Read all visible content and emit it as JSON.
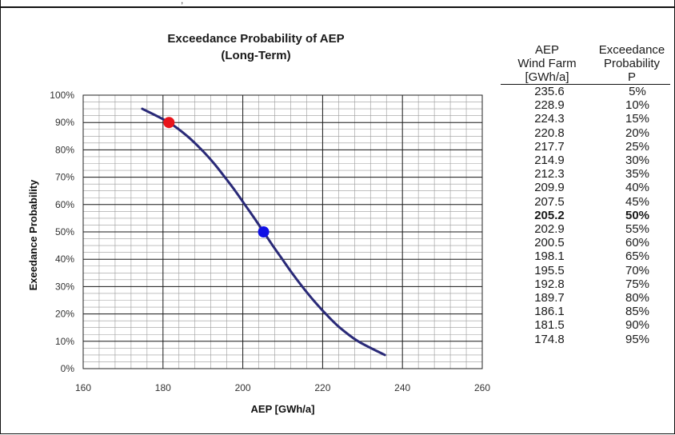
{
  "header": {
    "partial_text": ","
  },
  "chart_data": {
    "type": "line",
    "title": "Exceedance Probability of AEP",
    "subtitle": "(Long-Term)",
    "xlabel": "AEP [GWh/a]",
    "ylabel": "Exeedance Probability",
    "xlim": [
      160,
      260
    ],
    "ylim": [
      0,
      100
    ],
    "x_ticks": [
      "160",
      "180",
      "200",
      "220",
      "240",
      "260"
    ],
    "y_ticks": [
      "0%",
      "10%",
      "20%",
      "30%",
      "40%",
      "50%",
      "60%",
      "70%",
      "80%",
      "90%",
      "100%"
    ],
    "grid": true,
    "series": [
      {
        "color": "#2a2a78",
        "x": [
          174.8,
          181.5,
          186.1,
          189.7,
          192.8,
          195.5,
          198.1,
          200.5,
          202.9,
          205.2,
          207.5,
          209.9,
          212.3,
          214.9,
          217.7,
          220.8,
          224.3,
          228.9,
          235.6
        ],
        "y": [
          95,
          90,
          85,
          80,
          75,
          70,
          65,
          60,
          55,
          50,
          45,
          40,
          35,
          30,
          25,
          20,
          15,
          10,
          5
        ]
      }
    ],
    "markers": [
      {
        "x": 181.5,
        "y": 90,
        "color": "#e8141a"
      },
      {
        "x": 205.2,
        "y": 50,
        "color": "#1010e6"
      }
    ]
  },
  "table": {
    "header_aep": [
      "AEP",
      "Wind Farm",
      "[GWh/a]"
    ],
    "header_exc": [
      "Exceedance",
      "Probability",
      "P"
    ],
    "rows": [
      {
        "aep": "235.6",
        "p": "5%"
      },
      {
        "aep": "228.9",
        "p": "10%"
      },
      {
        "aep": "224.3",
        "p": "15%"
      },
      {
        "aep": "220.8",
        "p": "20%"
      },
      {
        "aep": "217.7",
        "p": "25%"
      },
      {
        "aep": "214.9",
        "p": "30%"
      },
      {
        "aep": "212.3",
        "p": "35%"
      },
      {
        "aep": "209.9",
        "p": "40%"
      },
      {
        "aep": "207.5",
        "p": "45%"
      },
      {
        "aep": "205.2",
        "p": "50%",
        "highlight": true
      },
      {
        "aep": "202.9",
        "p": "55%"
      },
      {
        "aep": "200.5",
        "p": "60%"
      },
      {
        "aep": "198.1",
        "p": "65%"
      },
      {
        "aep": "195.5",
        "p": "70%"
      },
      {
        "aep": "192.8",
        "p": "75%"
      },
      {
        "aep": "189.7",
        "p": "80%"
      },
      {
        "aep": "186.1",
        "p": "85%"
      },
      {
        "aep": "181.5",
        "p": "90%"
      },
      {
        "aep": "174.8",
        "p": "95%"
      }
    ]
  }
}
